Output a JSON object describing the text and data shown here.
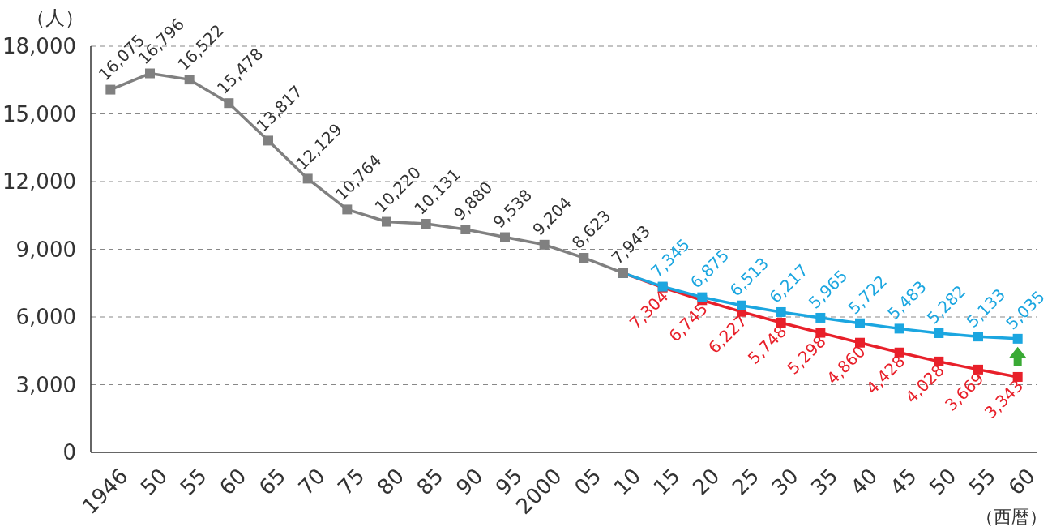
{
  "chart_data": {
    "type": "line",
    "ylabel": "（人）",
    "xlabel": "（西暦）",
    "categories": [
      "1946",
      "50",
      "55",
      "60",
      "65",
      "70",
      "75",
      "80",
      "85",
      "90",
      "95",
      "2000",
      "05",
      "10",
      "15",
      "20",
      "25",
      "30",
      "35",
      "40",
      "45",
      "50",
      "55",
      "60"
    ],
    "ylim": [
      0,
      18000
    ],
    "yticks": [
      {
        "value": 0,
        "label": "0"
      },
      {
        "value": 3000,
        "label": "3,000"
      },
      {
        "value": 6000,
        "label": "6,000"
      },
      {
        "value": 9000,
        "label": "9,000"
      },
      {
        "value": 12000,
        "label": "12,000"
      },
      {
        "value": 15000,
        "label": "15,000"
      },
      {
        "value": 18000,
        "label": "18,000"
      }
    ],
    "grid": "y",
    "marker": "square",
    "line_style": "solid",
    "series": [
      {
        "color": "#808080",
        "values": [
          16075,
          16796,
          16522,
          15478,
          13817,
          12129,
          10764,
          10220,
          10131,
          9880,
          9538,
          9204,
          8623,
          7943,
          null,
          null,
          null,
          null,
          null,
          null,
          null,
          null,
          null,
          null
        ],
        "value_labels": [
          "16,075",
          "16,796",
          "16,522",
          "15,478",
          "13,817",
          "12,129",
          "10,764",
          "10,220",
          "10,131",
          "9,880",
          "9,538",
          "9,204",
          "8,623",
          "7,943",
          null,
          null,
          null,
          null,
          null,
          null,
          null,
          null,
          null,
          null
        ]
      },
      {
        "color": "#1ba6e0",
        "values": [
          null,
          null,
          null,
          null,
          null,
          null,
          null,
          null,
          null,
          null,
          null,
          null,
          null,
          7943,
          7345,
          6875,
          6513,
          6217,
          5965,
          5722,
          5483,
          5282,
          5133,
          5035
        ],
        "value_labels": [
          null,
          null,
          null,
          null,
          null,
          null,
          null,
          null,
          null,
          null,
          null,
          null,
          null,
          null,
          "7,345",
          "6,875",
          "6,513",
          "6,217",
          "5,965",
          "5,722",
          "5,483",
          "5,282",
          "5,133",
          "5,035"
        ]
      },
      {
        "color": "#e8202a",
        "values": [
          null,
          null,
          null,
          null,
          null,
          null,
          null,
          null,
          null,
          null,
          null,
          null,
          null,
          7943,
          7304,
          6745,
          6227,
          5748,
          5298,
          4860,
          4428,
          4028,
          3669,
          3343
        ],
        "value_labels": [
          null,
          null,
          null,
          null,
          null,
          null,
          null,
          null,
          null,
          null,
          null,
          null,
          null,
          null,
          "7,304",
          "6,745",
          "6,227",
          "5,748",
          "5,298",
          "4,860",
          "4,428",
          "4,028",
          "3,669",
          "3,343"
        ]
      }
    ]
  }
}
